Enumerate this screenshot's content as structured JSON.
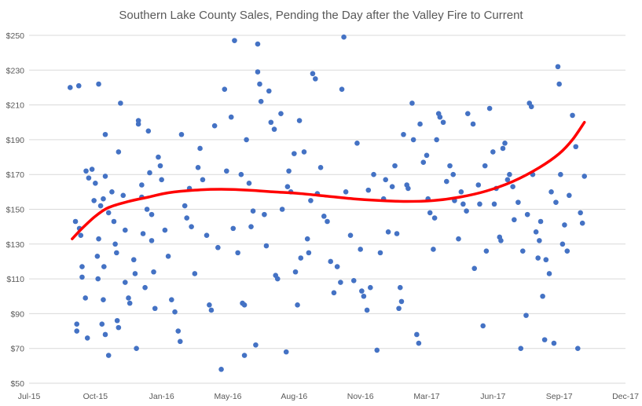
{
  "chart_data": {
    "type": "scatter",
    "title": "Southern Lake County Sales, Pending the Day after the Valley Fire to Current",
    "xlabel": "",
    "ylabel": "",
    "x_ticks": [
      "Jul-15",
      "Oct-15",
      "Jan-16",
      "May-16",
      "Aug-16",
      "Nov-16",
      "Mar-17",
      "Jun-17",
      "Sep-17",
      "Dec-17"
    ],
    "x_tick_index": [
      0,
      1,
      2,
      3,
      4,
      5,
      6,
      7,
      8,
      9
    ],
    "y_ticks": [
      "$50",
      "$70",
      "$90",
      "$110",
      "$130",
      "$150",
      "$170",
      "$190",
      "$210",
      "$230",
      "$250"
    ],
    "xlim": [
      0,
      9
    ],
    "ylim": [
      50,
      250
    ],
    "grid": "horizontal",
    "legend": "none",
    "colors": {
      "points": "#4472c4",
      "trendline": "#ff0000"
    },
    "trendline": {
      "type": "polynomial",
      "x": [
        0.65,
        0.8,
        1.0,
        1.2,
        1.5,
        1.8,
        2.1,
        2.5,
        2.9,
        3.3,
        3.7,
        4.1,
        4.5,
        4.9,
        5.3,
        5.7,
        6.1,
        6.5,
        6.9,
        7.3,
        7.7,
        8.0,
        8.2,
        8.38
      ],
      "y": [
        133,
        139,
        146,
        151,
        154.5,
        157,
        159.5,
        161,
        161.5,
        161,
        160,
        159,
        157.5,
        156,
        155,
        154.5,
        155,
        157,
        160.5,
        166,
        174,
        182,
        190,
        200
      ]
    },
    "points": [
      [
        0.62,
        220
      ],
      [
        0.75,
        221
      ],
      [
        0.72,
        84
      ],
      [
        0.72,
        80
      ],
      [
        0.7,
        143
      ],
      [
        0.76,
        139
      ],
      [
        0.78,
        135
      ],
      [
        0.8,
        117
      ],
      [
        0.8,
        111
      ],
      [
        0.85,
        99
      ],
      [
        0.88,
        76
      ],
      [
        0.86,
        172
      ],
      [
        0.9,
        168
      ],
      [
        0.95,
        173
      ],
      [
        0.98,
        155
      ],
      [
        1.0,
        165
      ],
      [
        1.03,
        123
      ],
      [
        1.05,
        133
      ],
      [
        1.04,
        110
      ],
      [
        1.08,
        152
      ],
      [
        1.12,
        156
      ],
      [
        1.15,
        193
      ],
      [
        1.15,
        169
      ],
      [
        1.13,
        117
      ],
      [
        1.12,
        98
      ],
      [
        1.2,
        66
      ],
      [
        1.1,
        84
      ],
      [
        1.15,
        78
      ],
      [
        1.05,
        222
      ],
      [
        1.2,
        148
      ],
      [
        1.25,
        160
      ],
      [
        1.28,
        143
      ],
      [
        1.3,
        130
      ],
      [
        1.32,
        125
      ],
      [
        1.33,
        86
      ],
      [
        1.35,
        82
      ],
      [
        1.38,
        211
      ],
      [
        1.35,
        183
      ],
      [
        1.42,
        158
      ],
      [
        1.45,
        138
      ],
      [
        1.45,
        108
      ],
      [
        1.5,
        99
      ],
      [
        1.52,
        96
      ],
      [
        1.58,
        121
      ],
      [
        1.6,
        113
      ],
      [
        1.62,
        70
      ],
      [
        1.65,
        201
      ],
      [
        1.65,
        199
      ],
      [
        1.7,
        164
      ],
      [
        1.7,
        157
      ],
      [
        1.72,
        136
      ],
      [
        1.75,
        105
      ],
      [
        1.78,
        150
      ],
      [
        1.8,
        195
      ],
      [
        1.82,
        171
      ],
      [
        1.85,
        147
      ],
      [
        1.85,
        132
      ],
      [
        1.88,
        114
      ],
      [
        1.9,
        93
      ],
      [
        1.95,
        180
      ],
      [
        1.98,
        175
      ],
      [
        2.0,
        167
      ],
      [
        2.05,
        138
      ],
      [
        2.1,
        123
      ],
      [
        2.15,
        98
      ],
      [
        2.2,
        91
      ],
      [
        2.25,
        80
      ],
      [
        2.28,
        74
      ],
      [
        2.3,
        193
      ],
      [
        2.35,
        152
      ],
      [
        2.38,
        145
      ],
      [
        2.42,
        162
      ],
      [
        2.45,
        140
      ],
      [
        2.5,
        113
      ],
      [
        2.55,
        174
      ],
      [
        2.58,
        185
      ],
      [
        2.62,
        167
      ],
      [
        2.68,
        135
      ],
      [
        2.72,
        95
      ],
      [
        2.75,
        92
      ],
      [
        2.8,
        198
      ],
      [
        2.85,
        128
      ],
      [
        2.9,
        58
      ],
      [
        2.95,
        219
      ],
      [
        2.98,
        172
      ],
      [
        3.05,
        203
      ],
      [
        3.08,
        139
      ],
      [
        3.1,
        247
      ],
      [
        3.15,
        125
      ],
      [
        3.2,
        170
      ],
      [
        3.22,
        96
      ],
      [
        3.25,
        95
      ],
      [
        3.25,
        66
      ],
      [
        3.28,
        190
      ],
      [
        3.32,
        165
      ],
      [
        3.35,
        140
      ],
      [
        3.38,
        149
      ],
      [
        3.42,
        72
      ],
      [
        3.45,
        245
      ],
      [
        3.45,
        229
      ],
      [
        3.48,
        222
      ],
      [
        3.5,
        212
      ],
      [
        3.55,
        147
      ],
      [
        3.58,
        129
      ],
      [
        3.62,
        218
      ],
      [
        3.65,
        200
      ],
      [
        3.7,
        196
      ],
      [
        3.72,
        112
      ],
      [
        3.75,
        110
      ],
      [
        3.8,
        205
      ],
      [
        3.82,
        150
      ],
      [
        3.88,
        68
      ],
      [
        3.9,
        163
      ],
      [
        3.92,
        172
      ],
      [
        3.95,
        160
      ],
      [
        4.0,
        182
      ],
      [
        4.02,
        114
      ],
      [
        4.05,
        95
      ],
      [
        4.08,
        201
      ],
      [
        4.1,
        122
      ],
      [
        4.15,
        183
      ],
      [
        4.2,
        133
      ],
      [
        4.22,
        125
      ],
      [
        4.25,
        155
      ],
      [
        4.28,
        228
      ],
      [
        4.32,
        225
      ],
      [
        4.35,
        159
      ],
      [
        4.4,
        174
      ],
      [
        4.45,
        146
      ],
      [
        4.5,
        143
      ],
      [
        4.55,
        120
      ],
      [
        4.6,
        102
      ],
      [
        4.65,
        117
      ],
      [
        4.7,
        108
      ],
      [
        4.72,
        219
      ],
      [
        4.75,
        249
      ],
      [
        4.78,
        160
      ],
      [
        4.85,
        135
      ],
      [
        4.9,
        109
      ],
      [
        4.95,
        188
      ],
      [
        5.0,
        127
      ],
      [
        5.02,
        103
      ],
      [
        5.05,
        100
      ],
      [
        5.1,
        92
      ],
      [
        5.12,
        161
      ],
      [
        5.15,
        105
      ],
      [
        5.2,
        170
      ],
      [
        5.25,
        69
      ],
      [
        5.3,
        125
      ],
      [
        5.35,
        156
      ],
      [
        5.38,
        167
      ],
      [
        5.42,
        137
      ],
      [
        5.48,
        163
      ],
      [
        5.52,
        175
      ],
      [
        5.55,
        136
      ],
      [
        5.58,
        93
      ],
      [
        5.6,
        105
      ],
      [
        5.62,
        97
      ],
      [
        5.65,
        193
      ],
      [
        5.7,
        164
      ],
      [
        5.72,
        162
      ],
      [
        5.78,
        211
      ],
      [
        5.8,
        190
      ],
      [
        5.85,
        78
      ],
      [
        5.88,
        73
      ],
      [
        5.9,
        199
      ],
      [
        5.95,
        177
      ],
      [
        6.0,
        181
      ],
      [
        6.02,
        156
      ],
      [
        6.05,
        148
      ],
      [
        6.1,
        127
      ],
      [
        6.12,
        145
      ],
      [
        6.15,
        190
      ],
      [
        6.18,
        205
      ],
      [
        6.2,
        203
      ],
      [
        6.25,
        200
      ],
      [
        6.3,
        166
      ],
      [
        6.35,
        175
      ],
      [
        6.4,
        170
      ],
      [
        6.42,
        155
      ],
      [
        6.48,
        133
      ],
      [
        6.52,
        160
      ],
      [
        6.55,
        153
      ],
      [
        6.6,
        149
      ],
      [
        6.62,
        205
      ],
      [
        6.7,
        199
      ],
      [
        6.72,
        116
      ],
      [
        6.78,
        164
      ],
      [
        6.8,
        153
      ],
      [
        6.85,
        83
      ],
      [
        6.88,
        175
      ],
      [
        6.9,
        126
      ],
      [
        6.95,
        208
      ],
      [
        7.0,
        183
      ],
      [
        7.02,
        153
      ],
      [
        7.05,
        162
      ],
      [
        7.1,
        134
      ],
      [
        7.12,
        132
      ],
      [
        7.15,
        185
      ],
      [
        7.18,
        188
      ],
      [
        7.22,
        167
      ],
      [
        7.25,
        170
      ],
      [
        7.3,
        163
      ],
      [
        7.32,
        144
      ],
      [
        7.38,
        154
      ],
      [
        7.42,
        70
      ],
      [
        7.45,
        126
      ],
      [
        7.5,
        89
      ],
      [
        7.52,
        147
      ],
      [
        7.55,
        211
      ],
      [
        7.58,
        209
      ],
      [
        7.6,
        170
      ],
      [
        7.65,
        137
      ],
      [
        7.68,
        122
      ],
      [
        7.7,
        132
      ],
      [
        7.72,
        143
      ],
      [
        7.75,
        100
      ],
      [
        7.78,
        75
      ],
      [
        7.8,
        121
      ],
      [
        7.85,
        113
      ],
      [
        7.88,
        160
      ],
      [
        7.92,
        73
      ],
      [
        7.95,
        154
      ],
      [
        7.98,
        232
      ],
      [
        8.0,
        222
      ],
      [
        8.02,
        170
      ],
      [
        8.05,
        130
      ],
      [
        8.08,
        141
      ],
      [
        8.12,
        126
      ],
      [
        8.15,
        158
      ],
      [
        8.2,
        204
      ],
      [
        8.25,
        186
      ],
      [
        8.28,
        70
      ],
      [
        8.32,
        148
      ],
      [
        8.35,
        142
      ],
      [
        8.38,
        169
      ]
    ]
  }
}
